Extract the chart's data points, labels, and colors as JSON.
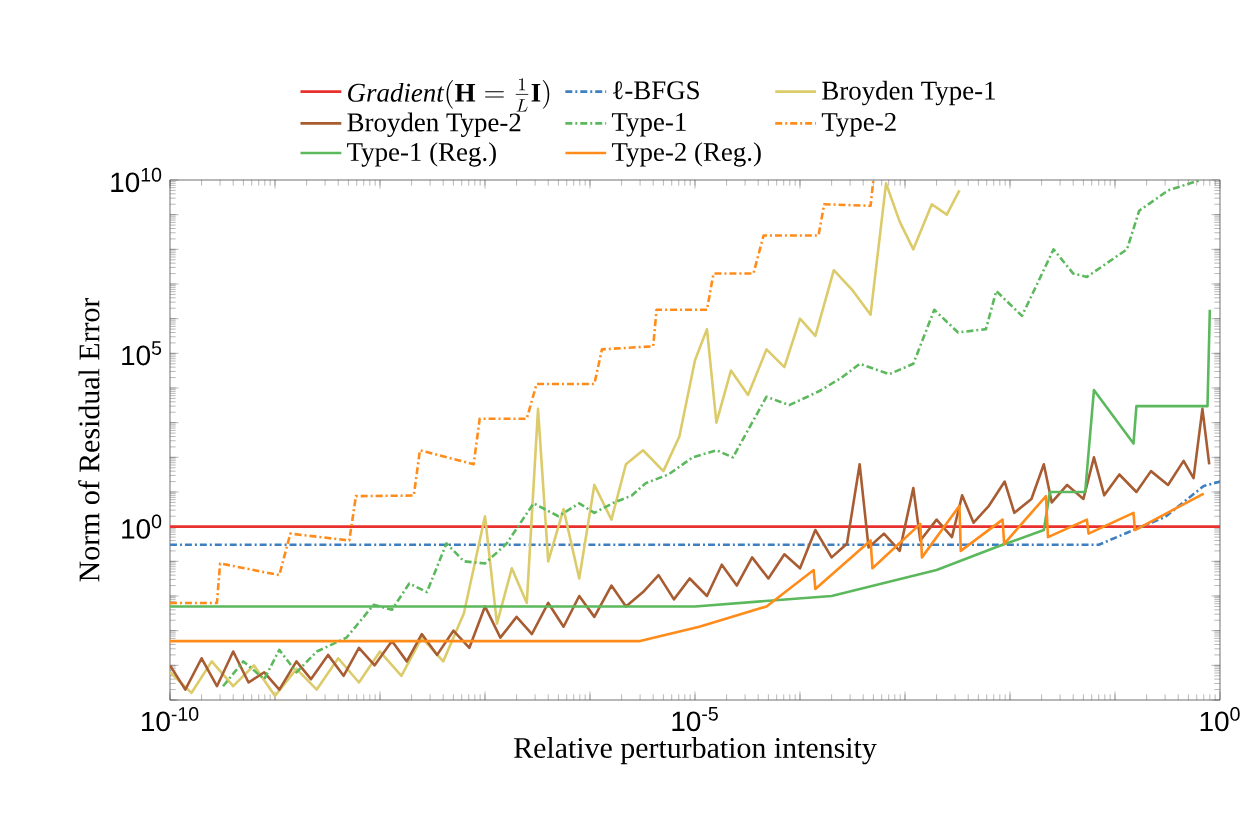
{
  "chart_data": {
    "type": "line",
    "xlabel": "Relative perturbation intensity",
    "ylabel": "Norm of Residual Error",
    "log": "xy",
    "legend": "top",
    "grid": false,
    "xlim": [
      1e-10,
      1
    ],
    "ylim": [
      1e-05,
      10000000000.0
    ],
    "xticks": [
      {
        "value": 1e-10,
        "label": "10$^{-10}$"
      },
      {
        "value": 1e-09,
        "label": null
      },
      {
        "value": 1e-08,
        "label": null
      },
      {
        "value": 1e-07,
        "label": null
      },
      {
        "value": 1e-06,
        "label": null
      },
      {
        "value": 1e-05,
        "label": "10$^{-5}$"
      },
      {
        "value": 0.0001,
        "label": null
      },
      {
        "value": 0.001,
        "label": null
      },
      {
        "value": 0.01,
        "label": null
      },
      {
        "value": 0.1,
        "label": null
      },
      {
        "value": 1,
        "label": "10$^{0}$"
      }
    ],
    "yticks": [
      {
        "value": 1e-05,
        "label": null
      },
      {
        "value": 0.0001,
        "label": null
      },
      {
        "value": 0.001,
        "label": null
      },
      {
        "value": 0.01,
        "label": null
      },
      {
        "value": 0.1,
        "label": null
      },
      {
        "value": 1,
        "label": "10$^{0}$"
      },
      {
        "value": 10,
        "label": null
      },
      {
        "value": 100,
        "label": null
      },
      {
        "value": 1000,
        "label": null
      },
      {
        "value": 10000.0,
        "label": null
      },
      {
        "value": 100000.0,
        "label": "10$^{5}$"
      },
      {
        "value": 1000000.0,
        "label": null
      },
      {
        "value": 10000000.0,
        "label": null
      },
      {
        "value": 100000000.0,
        "label": null
      },
      {
        "value": 1000000000.0,
        "label": null
      },
      {
        "value": 10000000000.0,
        "label": "10$^{10}$"
      }
    ],
    "series": [
      {
        "name": "\\mathit{Gradient}(\\mathbf{H}=\\frac{1}{L}\\mathbf{I})",
        "color": "#e8312f",
        "line_style": "solid",
        "x": [
          1e-10,
          1
        ],
        "values": [
          1,
          1
        ]
      },
      {
        "name": "ℓ-BFGS",
        "color": "#3d7fc1",
        "line_style": "dashed",
        "x": [
          1e-10,
          0.07,
          0.15,
          0.3,
          0.7,
          1
        ],
        "values": [
          0.3,
          0.3,
          0.8,
          1.9,
          15,
          20
        ]
      },
      {
        "name": "Broyden Type-1",
        "color": "#dccb6a",
        "line_style": "solid",
        "x": [
          1e-10,
          1.6e-10,
          2.5e-10,
          4e-10,
          6.3e-10,
          1e-09,
          1.6e-09,
          2.5e-09,
          4e-09,
          6.3e-09,
          1e-08,
          1.6e-08,
          2.5e-08,
          4e-08,
          6.3e-08,
          1e-07,
          1.3e-07,
          1.8e-07,
          2.5e-07,
          3.2e-07,
          4e-07,
          5.6e-07,
          7.9e-07,
          1.1e-06,
          1.6e-06,
          2.2e-06,
          3.2e-06,
          5e-06,
          7.1e-06,
          1e-05,
          1.3e-05,
          1.6e-05,
          2.2e-05,
          3.2e-05,
          4.8e-05,
          7.1e-05,
          0.0001,
          0.00014,
          0.00021,
          0.00032,
          0.00047,
          0.00066,
          0.00089,
          0.0012,
          0.0018,
          0.0025,
          0.0033
        ],
        "values": [
          6.3e-05,
          1.6e-05,
          0.00013,
          2.5e-05,
          0.0001,
          1.3e-05,
          7.9e-05,
          2e-05,
          0.00016,
          3.2e-05,
          0.00025,
          5e-05,
          0.00063,
          0.00013,
          0.0032,
          2,
          0.0016,
          0.063,
          0.0063,
          2500,
          0.1,
          3.2,
          0.032,
          16,
          1.6,
          63,
          160,
          40,
          400,
          63000.0,
          500000.0,
          1000,
          32000.0,
          6300,
          130000.0,
          40000.0,
          1000000.0,
          320000.0,
          25000000.0,
          6300000.0,
          1300000.0,
          8000000000.0,
          630000000.0,
          100000000.0,
          2000000000.0,
          1000000000.0,
          5000000000.0
        ]
      },
      {
        "name": "Broyden Type-2",
        "color": "#a85c32",
        "line_style": "solid",
        "x": [
          1e-10,
          1.4e-10,
          2e-10,
          2.8e-10,
          4e-10,
          5.6e-10,
          7.9e-10,
          1.1e-09,
          1.6e-09,
          2.2e-09,
          3.2e-09,
          4.5e-09,
          6.3e-09,
          8.9e-09,
          1.3e-08,
          1.8e-08,
          2.5e-08,
          3.5e-08,
          5e-08,
          7.1e-08,
          1e-07,
          1.4e-07,
          2e-07,
          2.8e-07,
          4e-07,
          5.6e-07,
          7.9e-07,
          1.1e-06,
          1.6e-06,
          2.2e-06,
          3.2e-06,
          4.5e-06,
          6.3e-06,
          8.9e-06,
          1.3e-05,
          1.8e-05,
          2.5e-05,
          3.5e-05,
          5e-05,
          7.1e-05,
          0.0001,
          0.00014,
          0.0002,
          0.00028,
          0.00037,
          0.00045,
          0.00063,
          0.00089,
          0.0012,
          0.0014,
          0.002,
          0.0028,
          0.0035,
          0.0045,
          0.0063,
          0.0089,
          0.011,
          0.016,
          0.021,
          0.025,
          0.035,
          0.05,
          0.063,
          0.079,
          0.11,
          0.16,
          0.22,
          0.32,
          0.45,
          0.56,
          0.68,
          0.79
        ],
        "values": [
          0.0001,
          2e-05,
          0.00016,
          2.5e-05,
          0.00025,
          3.2e-05,
          6.3e-05,
          2e-05,
          0.00013,
          4e-05,
          0.0002,
          5e-05,
          0.00032,
          0.0001,
          0.0005,
          0.00013,
          0.0008,
          0.0002,
          0.001,
          0.00032,
          0.005,
          0.00063,
          0.0025,
          0.0008,
          0.0063,
          0.0013,
          0.01,
          0.0025,
          0.02,
          0.005,
          0.013,
          0.04,
          0.008,
          0.032,
          0.01,
          0.08,
          0.02,
          0.13,
          0.032,
          0.16,
          0.063,
          0.8,
          0.13,
          0.32,
          63,
          0.25,
          0.63,
          0.2,
          13,
          0.4,
          1.6,
          0.5,
          8,
          1.3,
          4,
          20,
          2.5,
          6.3,
          63,
          5,
          16,
          6.3,
          100,
          8,
          32,
          10,
          40,
          16,
          79,
          25,
          2500,
          63
        ]
      },
      {
        "name": "Type-1",
        "color": "#5cb85c",
        "line_style": "dashed",
        "x": [
          3.2e-10,
          5e-10,
          7.9e-10,
          1.1e-09,
          1.6e-09,
          2.5e-09,
          4.8e-09,
          8.7e-09,
          1.3e-08,
          1.9e-08,
          2.8e-08,
          4.3e-08,
          6.3e-08,
          1e-07,
          1.6e-07,
          2.9e-07,
          5e-07,
          7.9e-07,
          1.1e-06,
          1.7e-06,
          2.5e-06,
          3.4e-06,
          5.6e-06,
          9.5e-06,
          1.6e-05,
          2.3e-05,
          3.5e-05,
          4.8e-05,
          7.9e-05,
          0.00015,
          0.00025,
          0.00037,
          0.00071,
          0.0012,
          0.0019,
          0.0032,
          0.0059,
          0.0074,
          0.013,
          0.026,
          0.04,
          0.054,
          0.13,
          0.17,
          0.32,
          0.65
        ],
        "values": [
          2.5e-05,
          0.00013,
          4e-05,
          0.00028,
          6.3e-05,
          0.00025,
          0.00063,
          0.0056,
          0.004,
          0.023,
          0.013,
          0.33,
          0.1,
          0.087,
          0.32,
          4.7,
          2,
          4.7,
          2.5,
          5,
          7.9,
          18,
          32,
          100,
          160,
          100,
          1000,
          5600,
          3200,
          7900,
          20000.0,
          50000.0,
          25000.0,
          50000.0,
          1800000.0,
          400000.0,
          500000.0,
          6300000.0,
          1200000.0,
          100000000.0,
          20000000.0,
          16000000.0,
          100000000.0,
          1300000000.0,
          5000000000.0,
          10000000000.0
        ]
      },
      {
        "name": "Type-2",
        "color": "#ff8c1a",
        "line_style": "dashed",
        "x": [
          1e-10,
          2.8e-10,
          3e-10,
          1.1e-09,
          1.4e-09,
          5.1e-09,
          5.9e-09,
          2.1e-08,
          2.4e-08,
          7.8e-08,
          8.9e-08,
          2.5e-07,
          3.1e-07,
          1.1e-06,
          1.3e-06,
          4e-06,
          4.3e-06,
          1.3e-05,
          1.5e-05,
          3.6e-05,
          4.5e-05,
          0.00015,
          0.00017,
          0.00047,
          0.0005
        ],
        "values": [
          0.0063,
          0.0063,
          0.087,
          0.04,
          0.63,
          0.4,
          7.6,
          7.9,
          160,
          63,
          1300,
          1300,
          13000.0,
          13000.0,
          130000.0,
          160000.0,
          1800000.0,
          1800000.0,
          20000000.0,
          20000000.0,
          250000000.0,
          250000000.0,
          2000000000.0,
          1800000000.0,
          10000000000.0
        ]
      },
      {
        "name": "Type-1 (Reg.)",
        "color": "#5cb85c",
        "line_style": "solid",
        "x": [
          1e-10,
          1e-05,
          0.0002,
          0.002,
          0.008,
          0.021,
          0.024,
          0.052,
          0.063,
          0.15,
          0.16,
          0.76,
          0.8
        ],
        "values": [
          0.005,
          0.005,
          0.01,
          0.056,
          0.28,
          0.8,
          10,
          10,
          8700,
          250,
          3000,
          3000,
          1800000.0
        ]
      },
      {
        "name": "Type-2 (Reg.)",
        "color": "#ff8c1a",
        "line_style": "solid",
        "x": [
          1e-10,
          3e-06,
          1.1e-05,
          4.8e-05,
          0.000135,
          0.00014,
          0.00047,
          0.00049,
          0.0014,
          0.00145,
          0.0033,
          0.0034,
          0.0085,
          0.0088,
          0.022,
          0.023,
          0.054,
          0.056,
          0.15,
          0.155,
          0.7
        ],
        "values": [
          0.0005,
          0.0005,
          0.0013,
          0.005,
          0.056,
          0.016,
          0.4,
          0.063,
          1.2,
          0.13,
          4,
          0.2,
          1.6,
          0.32,
          7.6,
          0.5,
          1.6,
          0.63,
          2.5,
          0.8,
          9
        ]
      }
    ]
  }
}
